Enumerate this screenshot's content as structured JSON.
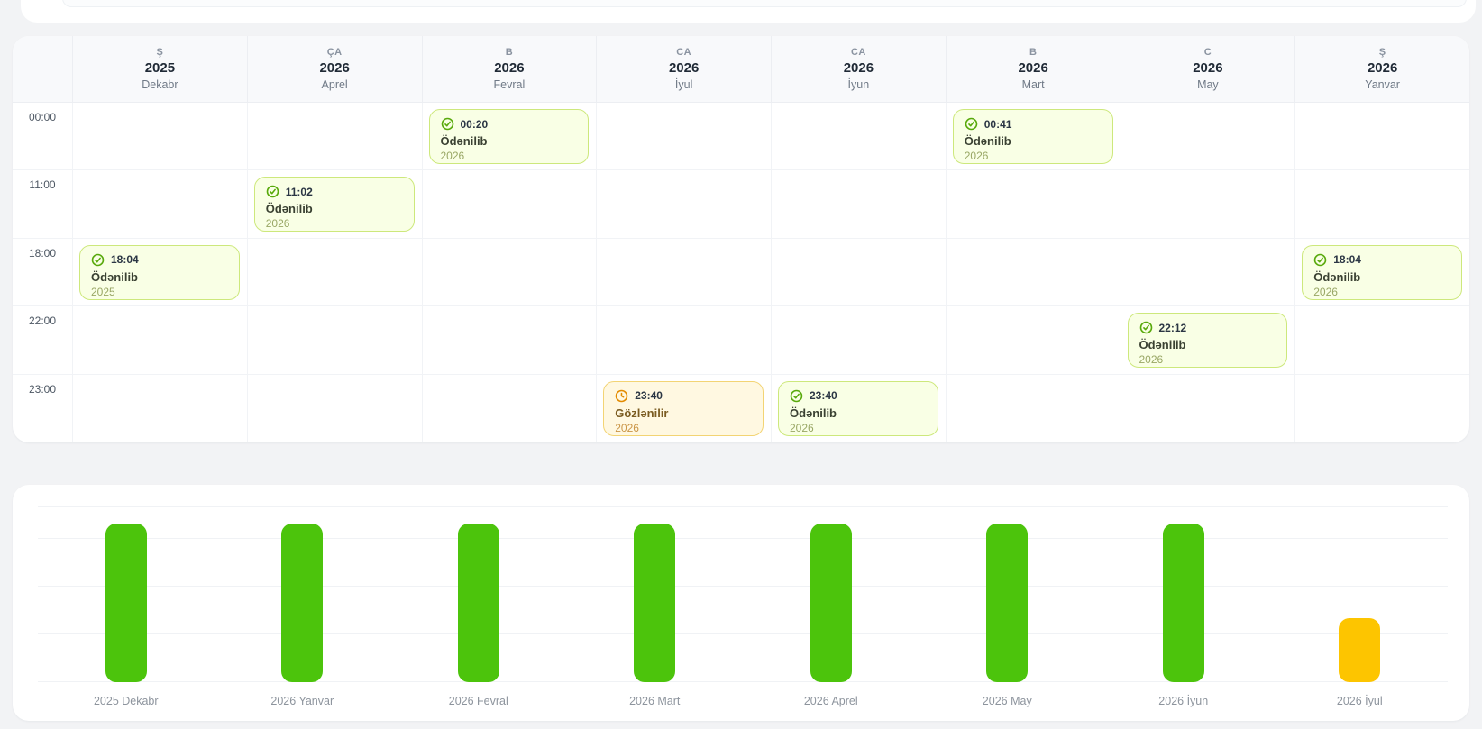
{
  "page": {
    "background": "#f2f3f5"
  },
  "calendar": {
    "time_slots": [
      "00:00",
      "11:00",
      "18:00",
      "22:00",
      "23:00"
    ],
    "columns": [
      {
        "day": "Ş",
        "year": "2025",
        "month": "Dekabr"
      },
      {
        "day": "ÇA",
        "year": "2026",
        "month": "Aprel"
      },
      {
        "day": "B",
        "year": "2026",
        "month": "Fevral"
      },
      {
        "day": "CA",
        "year": "2026",
        "month": "İyul"
      },
      {
        "day": "CA",
        "year": "2026",
        "month": "İyun"
      },
      {
        "day": "B",
        "year": "2026",
        "month": "Mart"
      },
      {
        "day": "C",
        "year": "2026",
        "month": "May"
      },
      {
        "day": "Ş",
        "year": "2026",
        "month": "Yanvar"
      }
    ],
    "events": [
      {
        "col": 2,
        "row": 0,
        "time": "00:20",
        "status": "Ödənilib",
        "year": "2026",
        "state": "paid",
        "icon": "check-circle-icon"
      },
      {
        "col": 5,
        "row": 0,
        "time": "00:41",
        "status": "Ödənilib",
        "year": "2026",
        "state": "paid",
        "icon": "check-circle-icon"
      },
      {
        "col": 1,
        "row": 1,
        "time": "11:02",
        "status": "Ödənilib",
        "year": "2026",
        "state": "paid",
        "icon": "check-circle-icon"
      },
      {
        "col": 0,
        "row": 2,
        "time": "18:04",
        "status": "Ödənilib",
        "year": "2025",
        "state": "paid",
        "icon": "check-circle-icon"
      },
      {
        "col": 7,
        "row": 2,
        "time": "18:04",
        "status": "Ödənilib",
        "year": "2026",
        "state": "paid",
        "icon": "check-circle-icon"
      },
      {
        "col": 6,
        "row": 3,
        "time": "22:12",
        "status": "Ödənilib",
        "year": "2026",
        "state": "paid",
        "icon": "check-circle-icon"
      },
      {
        "col": 3,
        "row": 4,
        "time": "23:40",
        "status": "Gözlənilir",
        "year": "2026",
        "state": "pending",
        "icon": "clock-icon"
      },
      {
        "col": 4,
        "row": 4,
        "time": "23:40",
        "status": "Ödənilib",
        "year": "2026",
        "state": "paid",
        "icon": "check-circle-icon"
      }
    ],
    "status_legend": {
      "paid": "Ödənilib",
      "pending": "Gözlənilir"
    }
  },
  "chart_data": {
    "type": "bar",
    "categories": [
      "2025 Dekabr",
      "2026 Yanvar",
      "2026 Fevral",
      "2026 Mart",
      "2026 Aprel",
      "2026 May",
      "2026 İyun",
      "2026 İyul"
    ],
    "values": [
      100,
      100,
      100,
      100,
      100,
      100,
      100,
      40
    ],
    "values_estimated_from_gridlines": true,
    "bar_states": [
      "paid",
      "paid",
      "paid",
      "paid",
      "paid",
      "paid",
      "paid",
      "pending"
    ],
    "title": "",
    "xlabel": "",
    "ylabel": "",
    "ylim": [
      0,
      110
    ],
    "gridline_values": [
      0,
      30,
      60,
      90,
      110
    ],
    "grid": true,
    "legend": false,
    "y_tick_labels_visible": false
  },
  "colors": {
    "bar_paid": "#4cc40c",
    "bar_pending": "#fdc500",
    "event_paid_bg": "#f9ffe5",
    "event_paid_border": "#cde87c",
    "event_pending_bg": "#fff8e1",
    "event_pending_border": "#f3d474",
    "icon_paid": "#58a90b",
    "icon_pending": "#e38b00"
  }
}
